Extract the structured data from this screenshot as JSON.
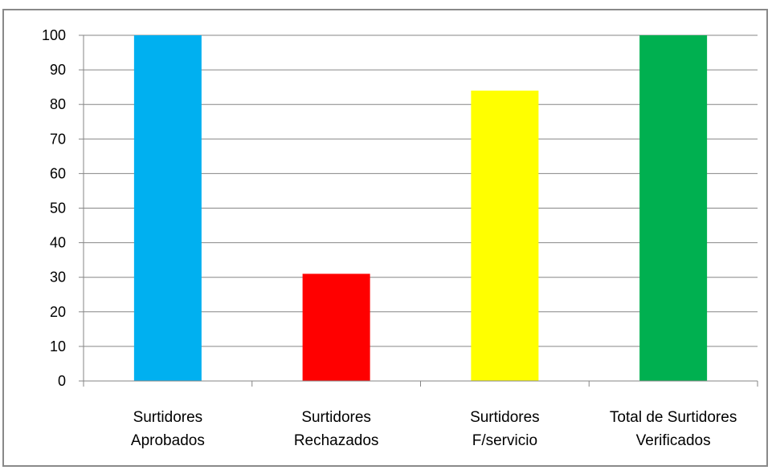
{
  "chart_data": {
    "type": "bar",
    "categories": [
      [
        "Surtidores",
        "Aprobados"
      ],
      [
        "Surtidores",
        "Rechazados"
      ],
      [
        "Surtidores",
        "F/servicio"
      ],
      [
        "Total de Surtidores",
        "Verificados"
      ]
    ],
    "values": [
      100,
      31,
      84,
      100
    ],
    "colors": [
      "#00B0F0",
      "#FF0000",
      "#FFFF00",
      "#00B050"
    ],
    "ylim": [
      0,
      100
    ],
    "yticks": [
      0,
      10,
      20,
      30,
      40,
      50,
      60,
      70,
      80,
      90,
      100
    ],
    "grid": true,
    "legend": "none"
  }
}
